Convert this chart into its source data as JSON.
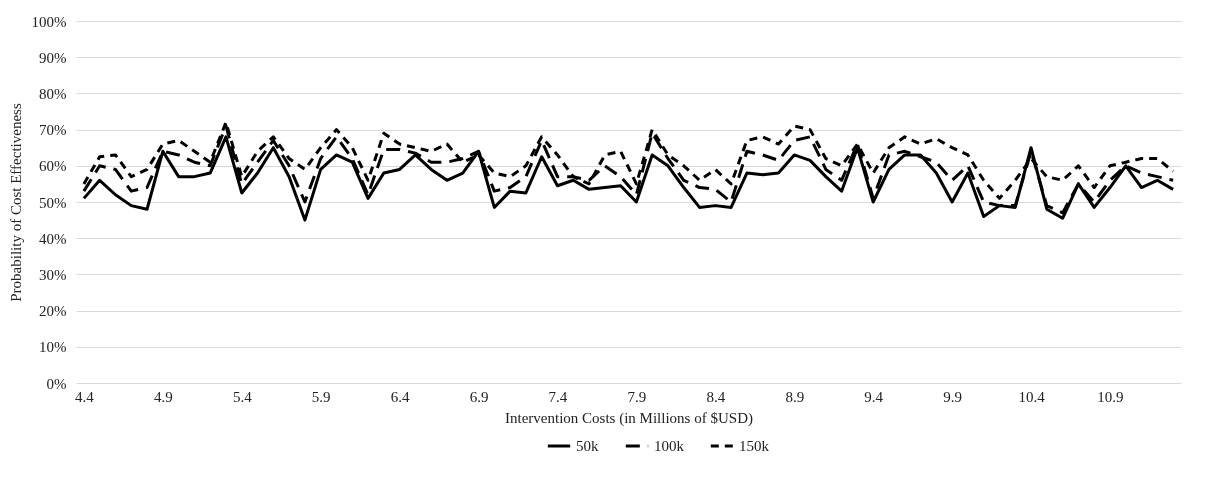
{
  "chart_data": {
    "type": "line",
    "xlabel": "Intervention Costs (in Millions of $USD)",
    "ylabel": "Probability of Cost Effectiveness",
    "categories": [
      "4.4",
      null,
      null,
      null,
      null,
      "4.9",
      null,
      null,
      null,
      null,
      "5.4",
      null,
      null,
      null,
      null,
      "5.9",
      null,
      null,
      null,
      null,
      "6.4",
      null,
      null,
      null,
      null,
      "6.9",
      null,
      null,
      null,
      null,
      "7.4",
      null,
      null,
      null,
      null,
      "7.9",
      null,
      null,
      null,
      null,
      "8.4",
      null,
      null,
      null,
      null,
      "8.9",
      null,
      null,
      null,
      null,
      "9.4",
      null,
      null,
      null,
      null,
      "9.9",
      null,
      null,
      null,
      null,
      "10.4",
      null,
      null,
      null,
      null,
      "10.9",
      null,
      null,
      null,
      null
    ],
    "series": [
      {
        "name": "50k",
        "color": "#000000",
        "line_style": "solid",
        "values": [
          51,
          56,
          52,
          49,
          48,
          64,
          57,
          57,
          58,
          68,
          52.5,
          58,
          65,
          57,
          45,
          59,
          63,
          61,
          51,
          58,
          59,
          63,
          59,
          56,
          58,
          64,
          48.5,
          53,
          52.5,
          62.5,
          54.5,
          56,
          53.5,
          54,
          54.5,
          50,
          63,
          60,
          54,
          48.5,
          49,
          48.5,
          58,
          57.5,
          58,
          63,
          61.5,
          57,
          53,
          65,
          50,
          59,
          63,
          63,
          58,
          50,
          58,
          46,
          49,
          48.5,
          65,
          48,
          45.5,
          55,
          48.5,
          54,
          60,
          54,
          56,
          53.5
        ]
      },
      {
        "name": "100k",
        "color": "#000000",
        "line_style": "dashed",
        "values": [
          53,
          60,
          59,
          53,
          54,
          64,
          63,
          61,
          60,
          71,
          55,
          61,
          67,
          60,
          50,
          62,
          68,
          62,
          52,
          64.5,
          64.5,
          63.5,
          61,
          61,
          62,
          64,
          53,
          54,
          57,
          67,
          57,
          57,
          56,
          60,
          57,
          52,
          69,
          62,
          56,
          54,
          53.5,
          50,
          64,
          63,
          61.5,
          67,
          68,
          59,
          56,
          66,
          51,
          63,
          64,
          62.5,
          61,
          56,
          60,
          50,
          49,
          49,
          64,
          49,
          47,
          55,
          50,
          56,
          60,
          58,
          57,
          56
        ]
      },
      {
        "name": "150k",
        "color": "#000000",
        "line_style": "dotted",
        "values": [
          55,
          62.5,
          63,
          57,
          59,
          66,
          67,
          64,
          61,
          72,
          57,
          64,
          68,
          62,
          59,
          65,
          70,
          65,
          56,
          69,
          66,
          65,
          64,
          66,
          61,
          63,
          58,
          57,
          60,
          68,
          63,
          57,
          55,
          63,
          64,
          55,
          70,
          63,
          60,
          56,
          59,
          55,
          67,
          68,
          66,
          71,
          70,
          62,
          60,
          66,
          58,
          65,
          68,
          66,
          67.5,
          65,
          63,
          56,
          51,
          56,
          62,
          57,
          56,
          60,
          54,
          60,
          61,
          62,
          62,
          58.5
        ]
      }
    ],
    "ylim": [
      0,
      100
    ],
    "yticks": [
      {
        "value": 0,
        "label": "0%"
      },
      {
        "value": 10,
        "label": "10%"
      },
      {
        "value": 20,
        "label": "20%"
      },
      {
        "value": 30,
        "label": "30%"
      },
      {
        "value": 40,
        "label": "40%"
      },
      {
        "value": 50,
        "label": "50%"
      },
      {
        "value": 60,
        "label": "60%"
      },
      {
        "value": 70,
        "label": "70%"
      },
      {
        "value": 80,
        "label": "80%"
      },
      {
        "value": 90,
        "label": "90%"
      },
      {
        "value": 100,
        "label": "100%"
      }
    ],
    "grid": "y",
    "legend": "bottom",
    "marker": "none"
  }
}
